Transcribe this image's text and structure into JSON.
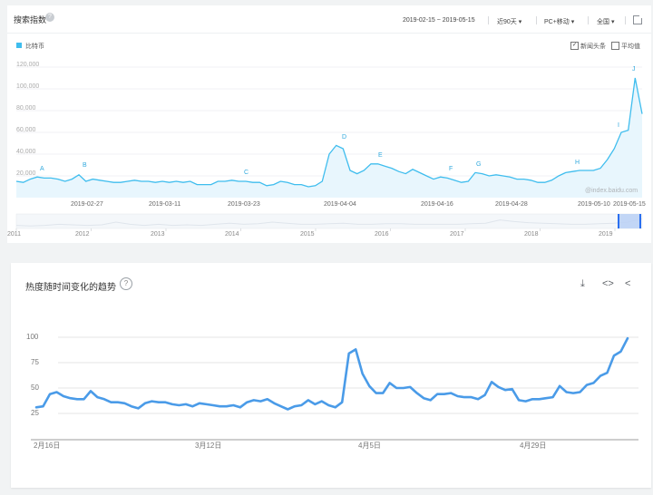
{
  "panel1": {
    "title": "搜索指数",
    "help": "?",
    "date_range": "2019-02-15 ~ 2019-05-15",
    "period": "近90天 ▾",
    "device": "PC+移动 ▾",
    "region": "全国 ▾",
    "legend": "比特币",
    "news_label": "新闻头条",
    "news_checked": "✓",
    "avg_label": "平均值",
    "y_ticks": [
      "120,000",
      "100,000",
      "80,000",
      "60,000",
      "40,000",
      "20,000"
    ],
    "x_ticks": [
      "2019-02-27",
      "2019-03-11",
      "2019-03-23",
      "2019-04-04",
      "2019-04-16",
      "2019-04-28",
      "2019-05-10",
      "2019-05-15"
    ],
    "year_ticks": [
      "2011",
      "2012",
      "2013",
      "2014",
      "2015",
      "2016",
      "2017",
      "2018",
      "2019"
    ],
    "annotations": [
      "A",
      "B",
      "C",
      "D",
      "E",
      "F",
      "G",
      "H",
      "I",
      "J"
    ],
    "watermark": "@index.baidu.com",
    "colors": {
      "line": "#3fbdee",
      "fill": "#e8f6fd",
      "accent": "#2a6ff0"
    }
  },
  "panel2": {
    "title": "热度随时间变化的趋势",
    "help": "?",
    "icons": [
      "download-icon",
      "embed-icon",
      "share-icon"
    ],
    "y_ticks": [
      "100",
      "75",
      "50",
      "25"
    ],
    "x_ticks": [
      "2月16日",
      "3月12日",
      "4月5日",
      "4月29日"
    ],
    "line_color": "#4a9be8"
  },
  "chart_data": [
    {
      "type": "area",
      "title": "",
      "series": [
        {
          "name": "比特币",
          "values": [
            15000,
            14000,
            17000,
            19000,
            18000,
            18000,
            17000,
            15000,
            17000,
            21000,
            15000,
            17000,
            16000,
            15000,
            14000,
            14000,
            15000,
            16000,
            15000,
            15000,
            14000,
            15000,
            14000,
            15000,
            14000,
            15000,
            12000,
            12000,
            12000,
            15000,
            15000,
            16000,
            15000,
            15000,
            14000,
            14000,
            11000,
            12000,
            15000,
            14000,
            12000,
            12000,
            10000,
            11000,
            15000,
            40000,
            48000,
            45000,
            25000,
            22000,
            25000,
            31000,
            31000,
            29000,
            27000,
            24000,
            22000,
            26000,
            23000,
            20000,
            17000,
            19000,
            18000,
            16000,
            14000,
            15000,
            23000,
            22000,
            20000,
            21000,
            20000,
            19000,
            17000,
            17000,
            16000,
            14000,
            14000,
            16000,
            20000,
            23000,
            24000,
            25000,
            25000,
            25000,
            27000,
            35000,
            45000,
            60000,
            62000,
            110000,
            77000
          ]
        }
      ],
      "ylim": [
        0,
        120000
      ],
      "x_start": "2019-02-15",
      "x_end": "2019-05-15"
    },
    {
      "type": "line",
      "title": "",
      "series": [
        {
          "name": "",
          "values": [
            31,
            32,
            44,
            46,
            42,
            40,
            39,
            39,
            47,
            41,
            39,
            36,
            36,
            35,
            32,
            30,
            35,
            37,
            36,
            36,
            34,
            33,
            34,
            32,
            35,
            34,
            33,
            32,
            32,
            33,
            31,
            36,
            38,
            37,
            39,
            35,
            32,
            29,
            32,
            33,
            38,
            34,
            37,
            33,
            31,
            36,
            84,
            88,
            64,
            52,
            45,
            45,
            55,
            50,
            50,
            51,
            45,
            40,
            38,
            44,
            44,
            45,
            42,
            41,
            41,
            39,
            43,
            56,
            51,
            48,
            49,
            38,
            37,
            39,
            39,
            40,
            41,
            52,
            46,
            45,
            46,
            53,
            55,
            62,
            65,
            82,
            86,
            99
          ]
        }
      ],
      "xlabels": [
        "2月16日",
        "3月12日",
        "4月5日",
        "4月29日"
      ],
      "ylim": [
        0,
        100
      ]
    }
  ]
}
